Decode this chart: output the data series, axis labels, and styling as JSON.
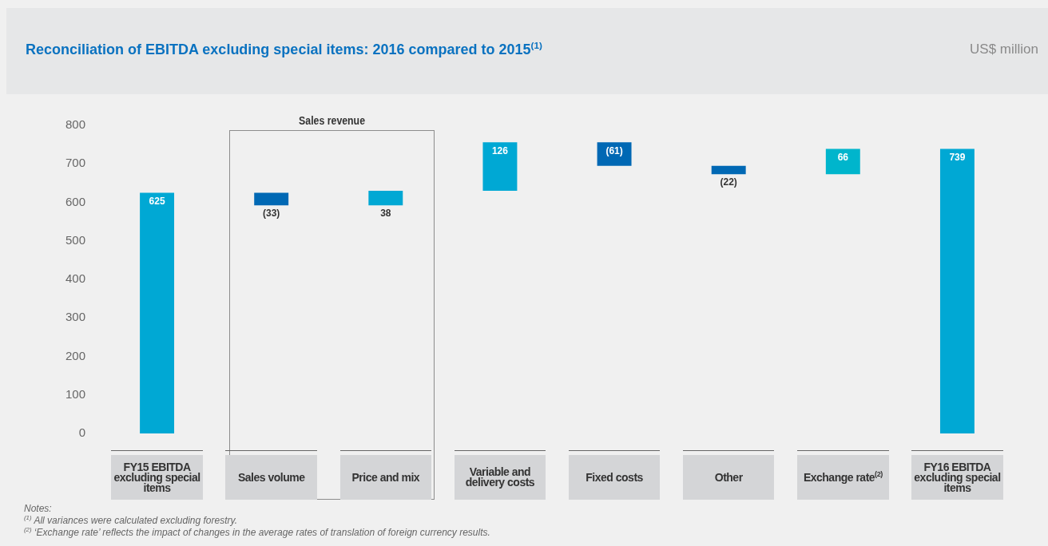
{
  "chart_data": {
    "type": "bar",
    "title": "Reconciliation of EBITDA excluding special items: 2016 compared to 2015$^{(1)}$",
    "ylabel": "US$ million",
    "categories": [
      "FY15 EBITDA excluding special items",
      "Sales volume",
      "Price and mix",
      "Variable and delivery costs",
      "Fixed costs",
      "Other",
      "Exchange rate$^{(2)}$",
      "FY16 EBITDA excluding special items"
    ],
    "values": [
      625,
      -33,
      38,
      126,
      -61,
      -22,
      66,
      739
    ],
    "base": [
      0,
      625,
      592,
      630,
      756,
      695,
      673,
      0
    ],
    "colors": [
      "#00a8d4",
      "#0068b4",
      "#00a8d4",
      "#00a8d4",
      "#0068b4",
      "#0068b4",
      "#00b5cc",
      "#00a8d4"
    ],
    "value_labels": [
      "625",
      "(33)",
      "38",
      "126",
      "(61)",
      "(22)",
      "66",
      "739"
    ],
    "ylim": [
      0,
      800
    ],
    "yticks": [
      0,
      100,
      200,
      300,
      400,
      500,
      600,
      700,
      800
    ],
    "annotations": [
      "Sales revenue",
      "Notes:",
      "$^{(1)}$ All variances were calculated excluding forestry.",
      "$^{(2)}$ ‘Exchange rate’ reflects the impact of changes in the average rates of translation of foreign currency results."
    ]
  }
}
